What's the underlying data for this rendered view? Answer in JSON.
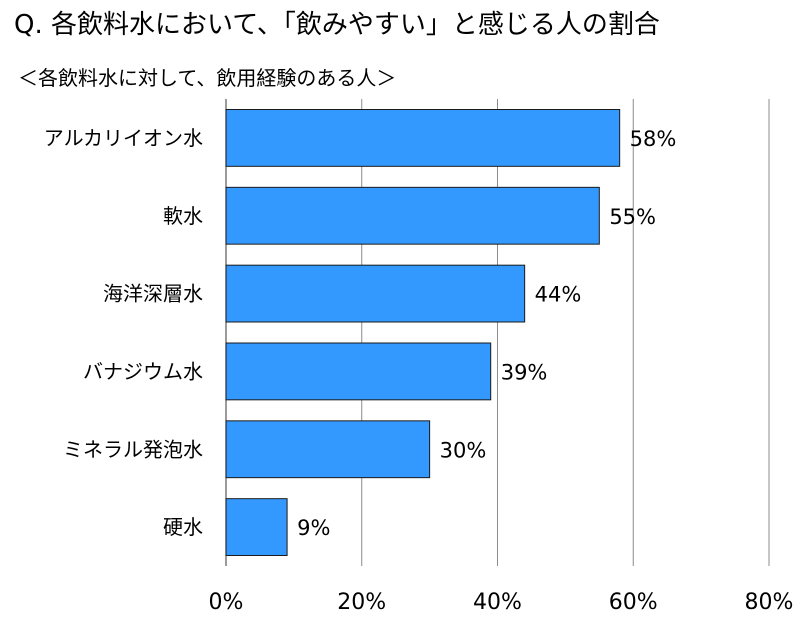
{
  "title": "Q. 各飲料水において、「飲みやすい」と感じる人の割合",
  "subtitle": "＜各飲料水に対して、飲用経験のある人＞",
  "colors": {
    "bar": "#3399ff",
    "bar_stroke": "#1a1a1a",
    "grid": "#8c8c8c"
  },
  "chart_data": {
    "type": "bar",
    "orientation": "horizontal",
    "categories": [
      "アルカリイオン水",
      "軟水",
      "海洋深層水",
      "バナジウム水",
      "ミネラル発泡水",
      "硬水"
    ],
    "values": [
      58,
      55,
      44,
      39,
      30,
      9
    ],
    "value_labels": [
      "58%",
      "55%",
      "44%",
      "39%",
      "30%",
      "9%"
    ],
    "xlim": [
      0,
      80
    ],
    "xticks": [
      0,
      20,
      40,
      60,
      80
    ],
    "xtick_labels": [
      "0%",
      "20%",
      "40%",
      "60%",
      "80%"
    ],
    "grid": true,
    "xlabel": "",
    "ylabel": ""
  }
}
